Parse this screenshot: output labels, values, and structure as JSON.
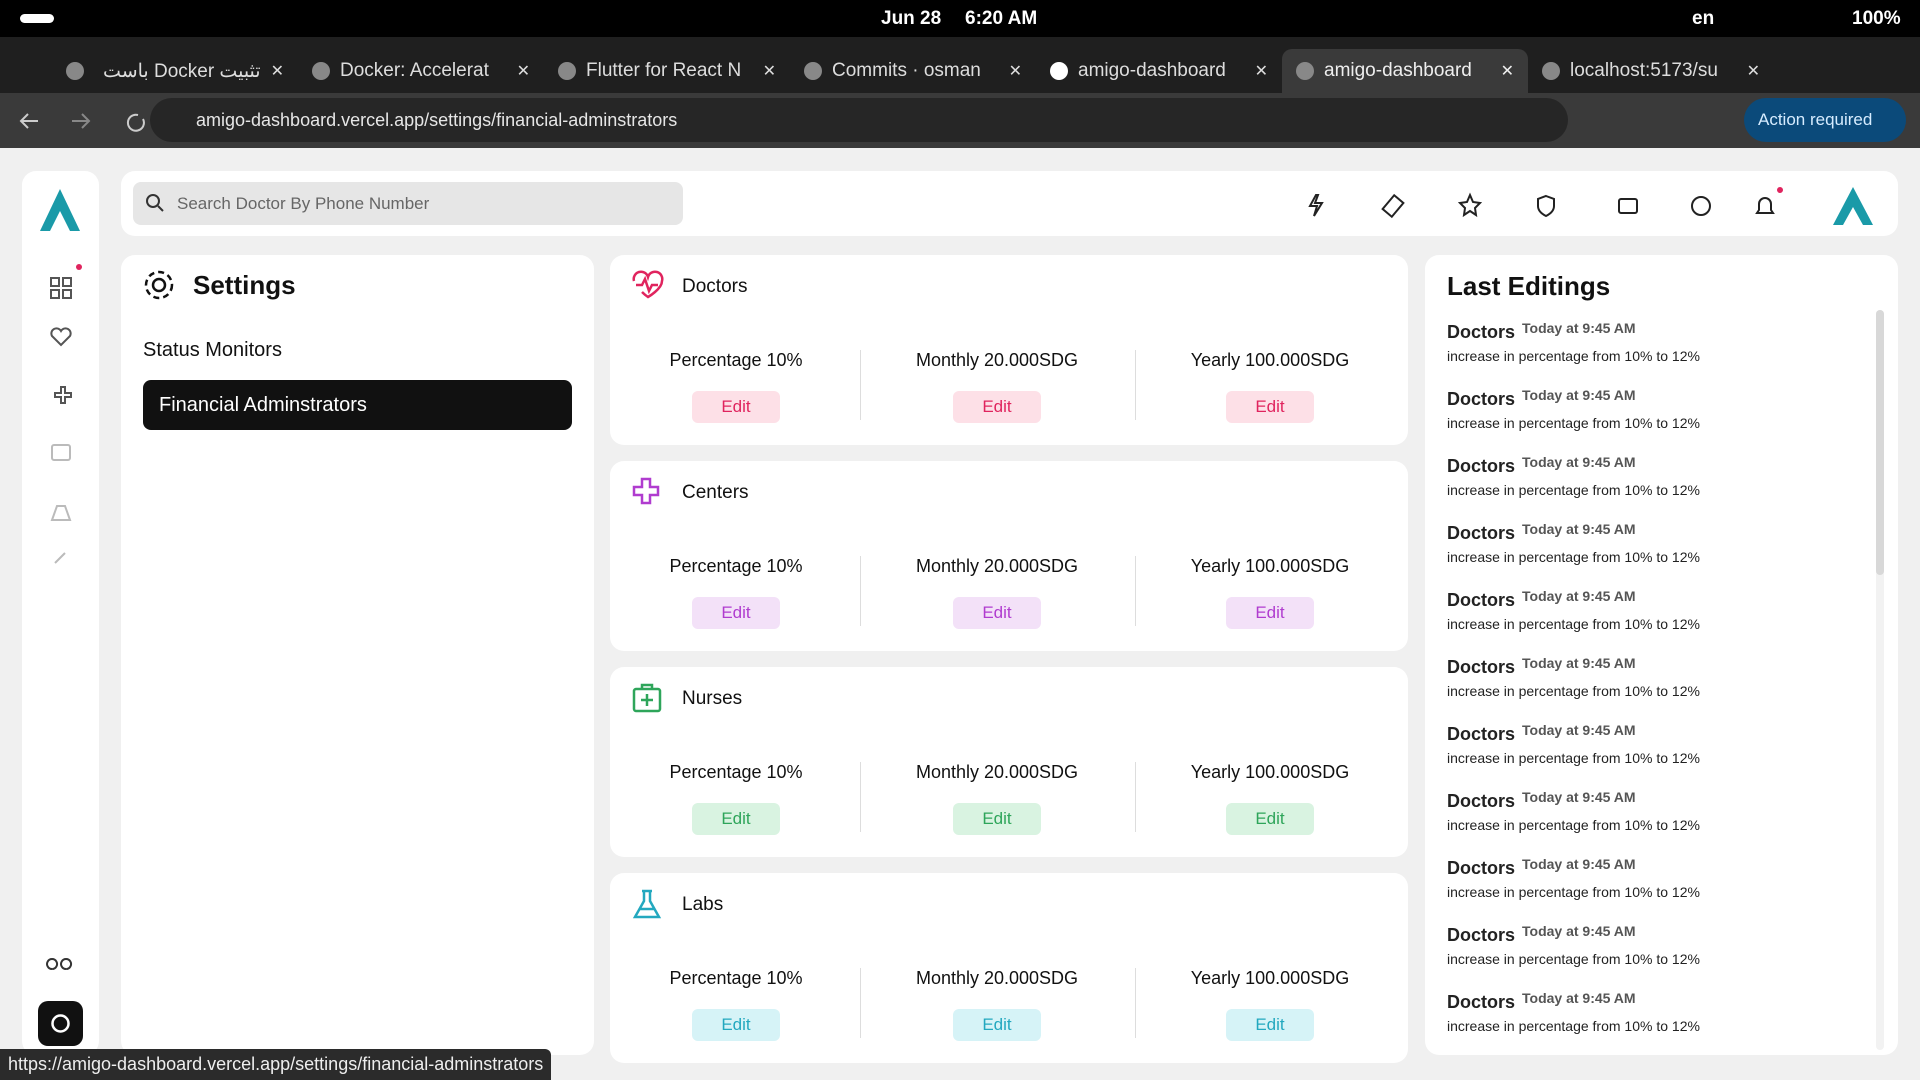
{
  "status_bar": {
    "date": "Jun 28",
    "time": "6:20 AM",
    "lang": "en",
    "battery": "100%"
  },
  "tabs": [
    {
      "title": "تثبيت Docker باست"
    },
    {
      "title": "Docker: Accelerat"
    },
    {
      "title": "Flutter for React N"
    },
    {
      "title": "Commits · osman"
    },
    {
      "title": "amigo-dashboard"
    },
    {
      "title": "amigo-dashboard",
      "active": true
    },
    {
      "title": "localhost:5173/su"
    }
  ],
  "address_bar": {
    "url": "amigo-dashboard.vercel.app/settings/financial-adminstrators",
    "action": "Action required"
  },
  "search": {
    "placeholder": "Search Doctor By Phone Number"
  },
  "settings": {
    "title": "Settings",
    "menu": [
      "Status Monitors",
      "Financial Adminstrators"
    ]
  },
  "cards": [
    {
      "title": "Doctors",
      "color": "#e0245e",
      "button_bg": "#fde0e7",
      "items": [
        {
          "label": "Percentage 10%",
          "button": "Edit"
        },
        {
          "label": "Monthly 20.000SDG",
          "button": "Edit"
        },
        {
          "label": "Yearly 100.000SDG",
          "button": "Edit"
        }
      ]
    },
    {
      "title": "Centers",
      "color": "#b03ccf",
      "button_bg": "#f3e1f8",
      "items": [
        {
          "label": "Percentage 10%",
          "button": "Edit"
        },
        {
          "label": "Monthly 20.000SDG",
          "button": "Edit"
        },
        {
          "label": "Yearly 100.000SDG",
          "button": "Edit"
        }
      ]
    },
    {
      "title": "Nurses",
      "color": "#2ea55a",
      "button_bg": "#d9f3e1",
      "items": [
        {
          "label": "Percentage 10%",
          "button": "Edit"
        },
        {
          "label": "Monthly 20.000SDG",
          "button": "Edit"
        },
        {
          "label": "Yearly 100.000SDG",
          "button": "Edit"
        }
      ]
    },
    {
      "title": "Labs",
      "color": "#23a8bf",
      "button_bg": "#d6f3f7",
      "items": [
        {
          "label": "Percentage 10%",
          "button": "Edit"
        },
        {
          "label": "Monthly 20.000SDG",
          "button": "Edit"
        },
        {
          "label": "Yearly 100.000SDG",
          "button": "Edit"
        }
      ]
    }
  ],
  "last_editings": {
    "title": "Last Editings",
    "entries": [
      {
        "entity": "Doctors",
        "time": "Today at 9:45 AM",
        "text": "increase in percentage from 10% to 12%"
      },
      {
        "entity": "Doctors",
        "time": "Today at 9:45 AM",
        "text": "increase in percentage from 10% to 12%"
      },
      {
        "entity": "Doctors",
        "time": "Today at 9:45 AM",
        "text": "increase in percentage from 10% to 12%"
      },
      {
        "entity": "Doctors",
        "time": "Today at 9:45 AM",
        "text": "increase in percentage from 10% to 12%"
      },
      {
        "entity": "Doctors",
        "time": "Today at 9:45 AM",
        "text": "increase in percentage from 10% to 12%"
      },
      {
        "entity": "Doctors",
        "time": "Today at 9:45 AM",
        "text": "increase in percentage from 10% to 12%"
      },
      {
        "entity": "Doctors",
        "time": "Today at 9:45 AM",
        "text": "increase in percentage from 10% to 12%"
      },
      {
        "entity": "Doctors",
        "time": "Today at 9:45 AM",
        "text": "increase in percentage from 10% to 12%"
      },
      {
        "entity": "Doctors",
        "time": "Today at 9:45 AM",
        "text": "increase in percentage from 10% to 12%"
      },
      {
        "entity": "Doctors",
        "time": "Today at 9:45 AM",
        "text": "increase in percentage from 10% to 12%"
      },
      {
        "entity": "Doctors",
        "time": "Today at 9:45 AM",
        "text": "increase in percentage from 10% to 12%"
      }
    ]
  },
  "status_url": "https://amigo-dashboard.vercel.app/settings/financial-adminstrators"
}
